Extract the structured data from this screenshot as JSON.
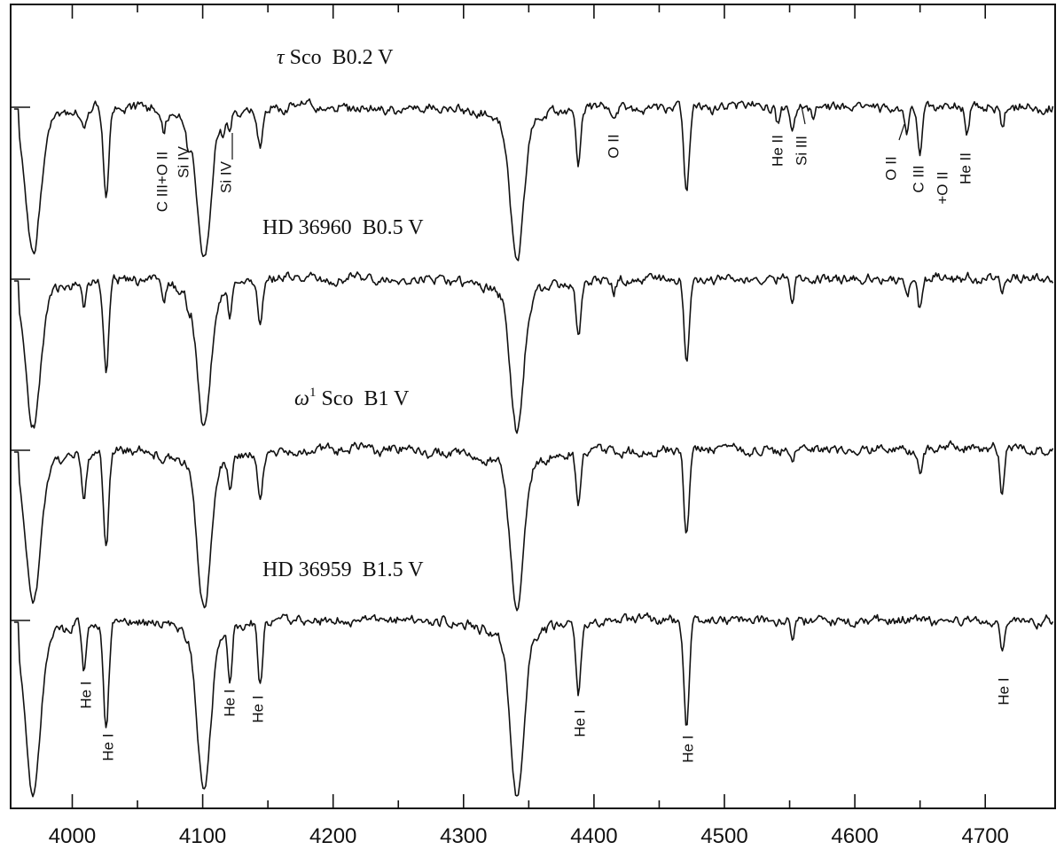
{
  "chart_data": {
    "type": "line",
    "title": "",
    "xlabel": "",
    "ylabel": "",
    "xlim": [
      3950,
      4750
    ],
    "x_ticks": [
      {
        "value": 4000,
        "label": "4000"
      },
      {
        "value": 4100,
        "label": "4100"
      },
      {
        "value": 4200,
        "label": "4200"
      },
      {
        "value": 4300,
        "label": "4300"
      },
      {
        "value": 4400,
        "label": "4400"
      },
      {
        "value": 4500,
        "label": "4500"
      },
      {
        "value": 4600,
        "label": "4600"
      },
      {
        "value": 4700,
        "label": "4700"
      }
    ],
    "minor_tick_step": 50,
    "grid": false,
    "series": [
      {
        "name": "τ Sco",
        "name_star": "Sco",
        "name_symbol": "τ",
        "name_symbol_sup": "",
        "spectral_type": "B0.2 V",
        "id": "tau-sco",
        "lines": [
          {
            "wl": 3970,
            "depth": 0.78,
            "width": 5.5
          },
          {
            "wl": 4009,
            "depth": 0.12,
            "width": 1.6
          },
          {
            "wl": 4026,
            "depth": 0.55,
            "width": 2.0
          },
          {
            "wl": 4070,
            "depth": 0.12,
            "width": 1.5
          },
          {
            "wl": 4089,
            "depth": 0.14,
            "width": 1.5
          },
          {
            "wl": 4101,
            "depth": 0.8,
            "width": 5.0
          },
          {
            "wl": 4116,
            "depth": 0.12,
            "width": 1.3
          },
          {
            "wl": 4121,
            "depth": 0.1,
            "width": 1.2
          },
          {
            "wl": 4144,
            "depth": 0.22,
            "width": 1.8
          },
          {
            "wl": 4341,
            "depth": 0.82,
            "width": 5.0
          },
          {
            "wl": 4388,
            "depth": 0.33,
            "width": 1.8
          },
          {
            "wl": 4415,
            "depth": 0.1,
            "width": 1.5
          },
          {
            "wl": 4471,
            "depth": 0.52,
            "width": 2.0
          },
          {
            "wl": 4541,
            "depth": 0.1,
            "width": 1.5
          },
          {
            "wl": 4552,
            "depth": 0.12,
            "width": 1.5
          },
          {
            "wl": 4568,
            "depth": 0.08,
            "width": 1.2
          },
          {
            "wl": 4640,
            "depth": 0.14,
            "width": 1.5
          },
          {
            "wl": 4650,
            "depth": 0.25,
            "width": 1.8
          },
          {
            "wl": 4686,
            "depth": 0.18,
            "width": 1.6
          },
          {
            "wl": 4713,
            "depth": 0.1,
            "width": 1.4
          }
        ]
      },
      {
        "name": "HD 36960",
        "name_star": "",
        "name_symbol": "",
        "name_symbol_sup": "",
        "spectral_type": "B0.5 V",
        "id": "hd-36960",
        "lines": [
          {
            "wl": 3970,
            "depth": 0.79,
            "width": 5.5
          },
          {
            "wl": 4009,
            "depth": 0.15,
            "width": 1.6
          },
          {
            "wl": 4026,
            "depth": 0.52,
            "width": 2.0
          },
          {
            "wl": 4070,
            "depth": 0.13,
            "width": 1.5
          },
          {
            "wl": 4089,
            "depth": 0.1,
            "width": 1.4
          },
          {
            "wl": 4101,
            "depth": 0.8,
            "width": 5.0
          },
          {
            "wl": 4121,
            "depth": 0.17,
            "width": 1.4
          },
          {
            "wl": 4144,
            "depth": 0.25,
            "width": 1.8
          },
          {
            "wl": 4341,
            "depth": 0.82,
            "width": 5.0
          },
          {
            "wl": 4388,
            "depth": 0.34,
            "width": 1.8
          },
          {
            "wl": 4415,
            "depth": 0.08,
            "width": 1.4
          },
          {
            "wl": 4471,
            "depth": 0.5,
            "width": 2.0
          },
          {
            "wl": 4552,
            "depth": 0.12,
            "width": 1.5
          },
          {
            "wl": 4640,
            "depth": 0.12,
            "width": 1.5
          },
          {
            "wl": 4650,
            "depth": 0.2,
            "width": 1.8
          },
          {
            "wl": 4713,
            "depth": 0.08,
            "width": 1.4
          }
        ]
      },
      {
        "name": "ω¹ Sco",
        "name_star": "Sco",
        "name_symbol": "ω",
        "name_symbol_sup": "1",
        "spectral_type": "B1 V",
        "id": "omega-sco",
        "lines": [
          {
            "wl": 3970,
            "depth": 0.8,
            "width": 5.5
          },
          {
            "wl": 4009,
            "depth": 0.24,
            "width": 1.7
          },
          {
            "wl": 4026,
            "depth": 0.57,
            "width": 2.0
          },
          {
            "wl": 4070,
            "depth": 0.06,
            "width": 1.4
          },
          {
            "wl": 4101,
            "depth": 0.82,
            "width": 5.0
          },
          {
            "wl": 4121,
            "depth": 0.2,
            "width": 1.5
          },
          {
            "wl": 4144,
            "depth": 0.28,
            "width": 1.8
          },
          {
            "wl": 4341,
            "depth": 0.84,
            "width": 5.0
          },
          {
            "wl": 4388,
            "depth": 0.33,
            "width": 1.8
          },
          {
            "wl": 4471,
            "depth": 0.5,
            "width": 2.0
          },
          {
            "wl": 4552,
            "depth": 0.06,
            "width": 1.4
          },
          {
            "wl": 4650,
            "depth": 0.16,
            "width": 1.6
          },
          {
            "wl": 4713,
            "depth": 0.26,
            "width": 1.6
          }
        ]
      },
      {
        "name": "HD 36959",
        "name_star": "",
        "name_symbol": "",
        "name_symbol_sup": "",
        "spectral_type": "B1.5 V",
        "id": "hd-36959",
        "lines": [
          {
            "wl": 3970,
            "depth": 0.82,
            "width": 5.5
          },
          {
            "wl": 4009,
            "depth": 0.25,
            "width": 1.7
          },
          {
            "wl": 4026,
            "depth": 0.58,
            "width": 2.0
          },
          {
            "wl": 4101,
            "depth": 0.82,
            "width": 5.0
          },
          {
            "wl": 4121,
            "depth": 0.27,
            "width": 1.5
          },
          {
            "wl": 4144,
            "depth": 0.35,
            "width": 1.8
          },
          {
            "wl": 4341,
            "depth": 0.84,
            "width": 5.0
          },
          {
            "wl": 4388,
            "depth": 0.37,
            "width": 1.8
          },
          {
            "wl": 4471,
            "depth": 0.55,
            "width": 2.0
          },
          {
            "wl": 4552,
            "depth": 0.08,
            "width": 1.4
          },
          {
            "wl": 4713,
            "depth": 0.2,
            "width": 1.6
          }
        ]
      }
    ],
    "line_labels": [
      {
        "text": "C III+O II",
        "wl": 4070,
        "series": "tau-sco"
      },
      {
        "text": "Si IV",
        "wl": 4089,
        "series": "tau-sco"
      },
      {
        "text": "Si IV",
        "wl": 4116,
        "series": "tau-sco"
      },
      {
        "text": "O II",
        "wl": 4415,
        "series": "tau-sco"
      },
      {
        "text": "He II",
        "wl": 4541,
        "series": "tau-sco"
      },
      {
        "text": "Si III",
        "wl": 4552,
        "series": "tau-sco"
      },
      {
        "text": "O II",
        "wl": 4640,
        "series": "tau-sco"
      },
      {
        "text": "C III",
        "wl": 4650,
        "series": "tau-sco"
      },
      {
        "text": "+O II",
        "wl": 4650,
        "series": "tau-sco"
      },
      {
        "text": "He II",
        "wl": 4686,
        "series": "tau-sco"
      },
      {
        "text": "He I",
        "wl": 4009,
        "series": "hd-36959"
      },
      {
        "text": "He I",
        "wl": 4026,
        "series": "hd-36959"
      },
      {
        "text": "He I",
        "wl": 4121,
        "series": "hd-36959"
      },
      {
        "text": "He I",
        "wl": 4144,
        "series": "hd-36959"
      },
      {
        "text": "He I",
        "wl": 4388,
        "series": "hd-36959"
      },
      {
        "text": "He I",
        "wl": 4471,
        "series": "hd-36959"
      },
      {
        "text": "He I",
        "wl": 4713,
        "series": "hd-36959"
      }
    ]
  }
}
